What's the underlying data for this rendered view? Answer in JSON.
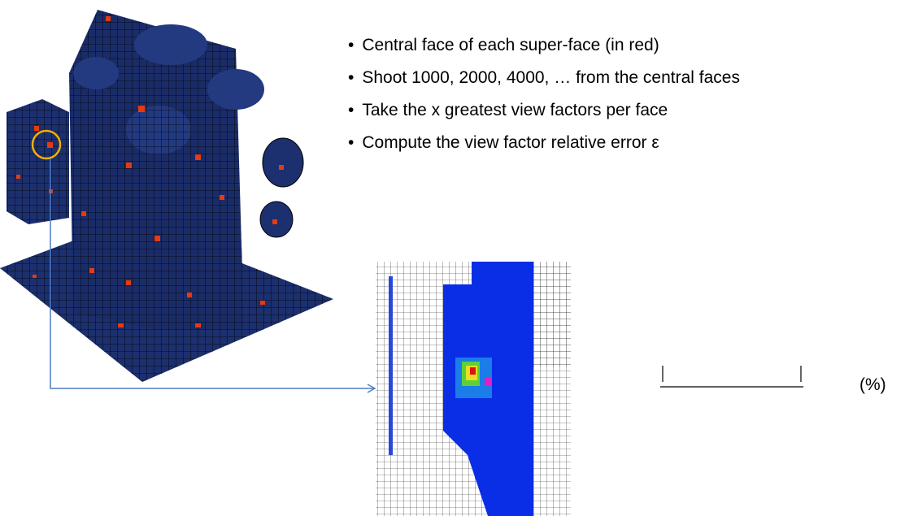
{
  "bullets": [
    "Central face of each super-face (in red)",
    "Shoot 1000, 2000, 4000, … from the central faces",
    "Take the x greatest view factors per face",
    "Compute the view factor relative error ε"
  ],
  "unit": "(%)"
}
